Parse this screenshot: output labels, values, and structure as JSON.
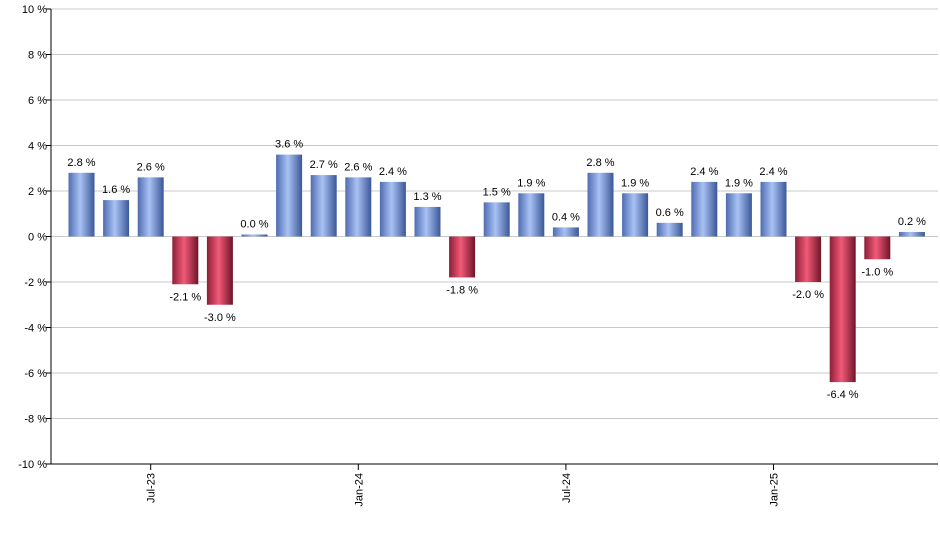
{
  "chart_data": {
    "type": "bar",
    "title": "",
    "xlabel": "",
    "ylabel": "",
    "ylim": [
      -10,
      10
    ],
    "y_ticks": [
      10,
      8,
      6,
      4,
      2,
      0,
      -2,
      -4,
      -6,
      -8,
      -10
    ],
    "y_tick_labels": [
      "10 %",
      "8 %",
      "6 %",
      "4 %",
      "2 %",
      "0 %",
      "-2 %",
      "-4 %",
      "-6 %",
      "-8 %",
      "-10 %"
    ],
    "grid": true,
    "legend": "none",
    "x_tick_labels": [
      {
        "label": "Jul-23",
        "index": 2
      },
      {
        "label": "Jan-24",
        "index": 8
      },
      {
        "label": "Jul-24",
        "index": 14
      },
      {
        "label": "Jan-25",
        "index": 20
      }
    ],
    "values": [
      2.8,
      1.6,
      2.6,
      -2.1,
      -3.0,
      0.0,
      3.6,
      2.7,
      2.6,
      2.4,
      1.3,
      -1.8,
      1.5,
      1.9,
      0.4,
      2.8,
      1.9,
      0.6,
      2.4,
      1.9,
      2.4,
      -2.0,
      -6.4,
      -1.0,
      0.2
    ],
    "value_labels": [
      "2.8 %",
      "1.6 %",
      "2.6 %",
      "-2.1 %",
      "-3.0 %",
      "0.0 %",
      "3.6 %",
      "2.7 %",
      "2.6 %",
      "2.4 %",
      "1.3 %",
      "-1.8 %",
      "1.5 %",
      "1.9 %",
      "0.4 %",
      "2.8 %",
      "1.9 %",
      "0.6 %",
      "2.4 %",
      "1.9 %",
      "2.4 %",
      "-2.0 %",
      "-6.4 %",
      "-1.0 %",
      "0.2 %"
    ],
    "colors": {
      "positive": "#8aa9e8",
      "positive_dark": "#3e5a9c",
      "negative": "#e0405e",
      "negative_dark": "#7a1c30",
      "grid": "#c8c8c8",
      "axis": "#000000"
    }
  }
}
